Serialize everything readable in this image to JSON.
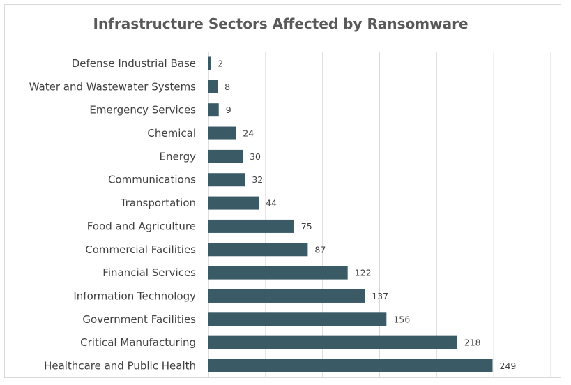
{
  "chart_data": {
    "type": "bar",
    "orientation": "horizontal",
    "title": "Infrastructure Sectors Affected by Ransomware",
    "xlabel": "",
    "ylabel": "",
    "xlim": [
      0,
      300
    ],
    "grid": true,
    "legend": "none",
    "bar_color": "#3a5a66",
    "categories": [
      "Defense Industrial Base",
      "Water and Wastewater Systems",
      "Emergency Services",
      "Chemical",
      "Energy",
      "Communications",
      "Transportation",
      "Food and Agriculture",
      "Commercial Facilities",
      "Financial Services",
      "Information Technology",
      "Government Facilities",
      "Critical Manufacturing",
      "Healthcare and Public Health"
    ],
    "values": [
      2,
      8,
      9,
      24,
      30,
      32,
      44,
      75,
      87,
      122,
      137,
      156,
      218,
      249
    ]
  }
}
